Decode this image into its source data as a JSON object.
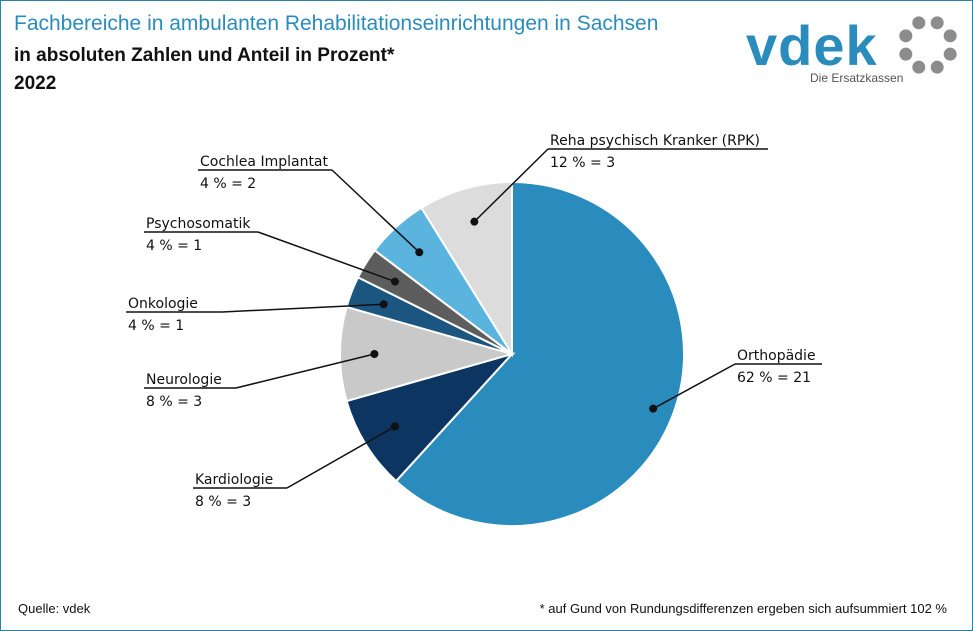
{
  "header": {
    "title": "Fachbereiche in ambulanten Rehabilitationseinrichtungen in Sachsen",
    "subtitle": "in absoluten Zahlen und Anteil in Prozent*",
    "year": "2022"
  },
  "logo": {
    "wordmark": "vdek",
    "tagline": "Die Ersatzkassen",
    "icon": "ring-of-dots-icon",
    "color": "#2a8cbd",
    "dot_color": "#8c8c8c"
  },
  "footer": {
    "source": "Quelle: vdek",
    "note": "* auf Gund von Rundungsdifferenzen ergeben sich aufsummiert 102 %"
  },
  "chart_data": {
    "type": "pie",
    "start_angle_deg": 0,
    "direction": "clockwise",
    "slices": [
      {
        "name": "Orthopädie",
        "count": 21,
        "percent": 62,
        "value_label": "62 % = 21",
        "color": "#2a8cbd"
      },
      {
        "name": "Kardiologie",
        "count": 3,
        "percent": 8,
        "value_label": "8 % = 3",
        "color": "#0c3561"
      },
      {
        "name": "Neurologie",
        "count": 3,
        "percent": 8,
        "value_label": "8 % = 3",
        "color": "#c9c9c9"
      },
      {
        "name": "Onkologie",
        "count": 1,
        "percent": 4,
        "value_label": "4 % = 1",
        "color": "#1b5681"
      },
      {
        "name": "Psychosomatik",
        "count": 1,
        "percent": 4,
        "value_label": "4 % = 1",
        "color": "#5d5d5d"
      },
      {
        "name": "Cochlea Implantat",
        "count": 2,
        "percent": 4,
        "value_label": "4 % = 2",
        "color": "#5ab4de"
      },
      {
        "name": "Reha psychisch Kranker (RPK)",
        "count": 3,
        "percent": 12,
        "value_label": "12 % = 3",
        "color": "#dcdcdc"
      }
    ]
  }
}
